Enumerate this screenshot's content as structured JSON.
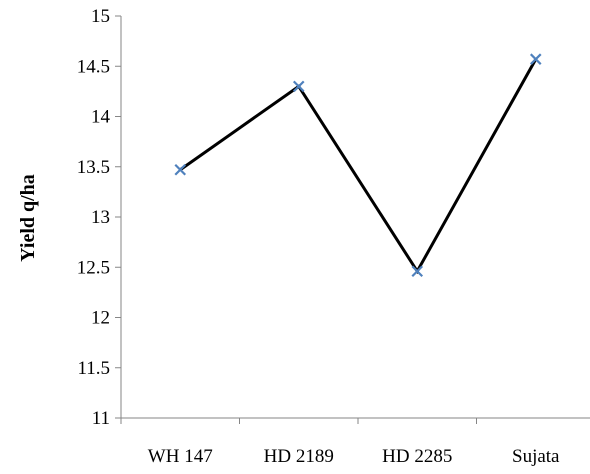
{
  "chart_data": {
    "type": "line",
    "title": "",
    "xlabel": "",
    "ylabel": "Yield q/ha",
    "categories": [
      "WH 147",
      "HD 2189",
      "HD 2285",
      "Sujata"
    ],
    "series": [
      {
        "values": [
          13.47,
          14.3,
          12.46,
          14.57
        ]
      }
    ],
    "ylim": [
      11,
      15
    ],
    "yticks": [
      "11",
      "11.5",
      "12",
      "12.5",
      "13",
      "13.5",
      "14",
      "14.5",
      "15"
    ],
    "grid": false,
    "legend": "none",
    "line_color": "#000000",
    "marker": "x",
    "marker_color": "#4f81bd"
  }
}
